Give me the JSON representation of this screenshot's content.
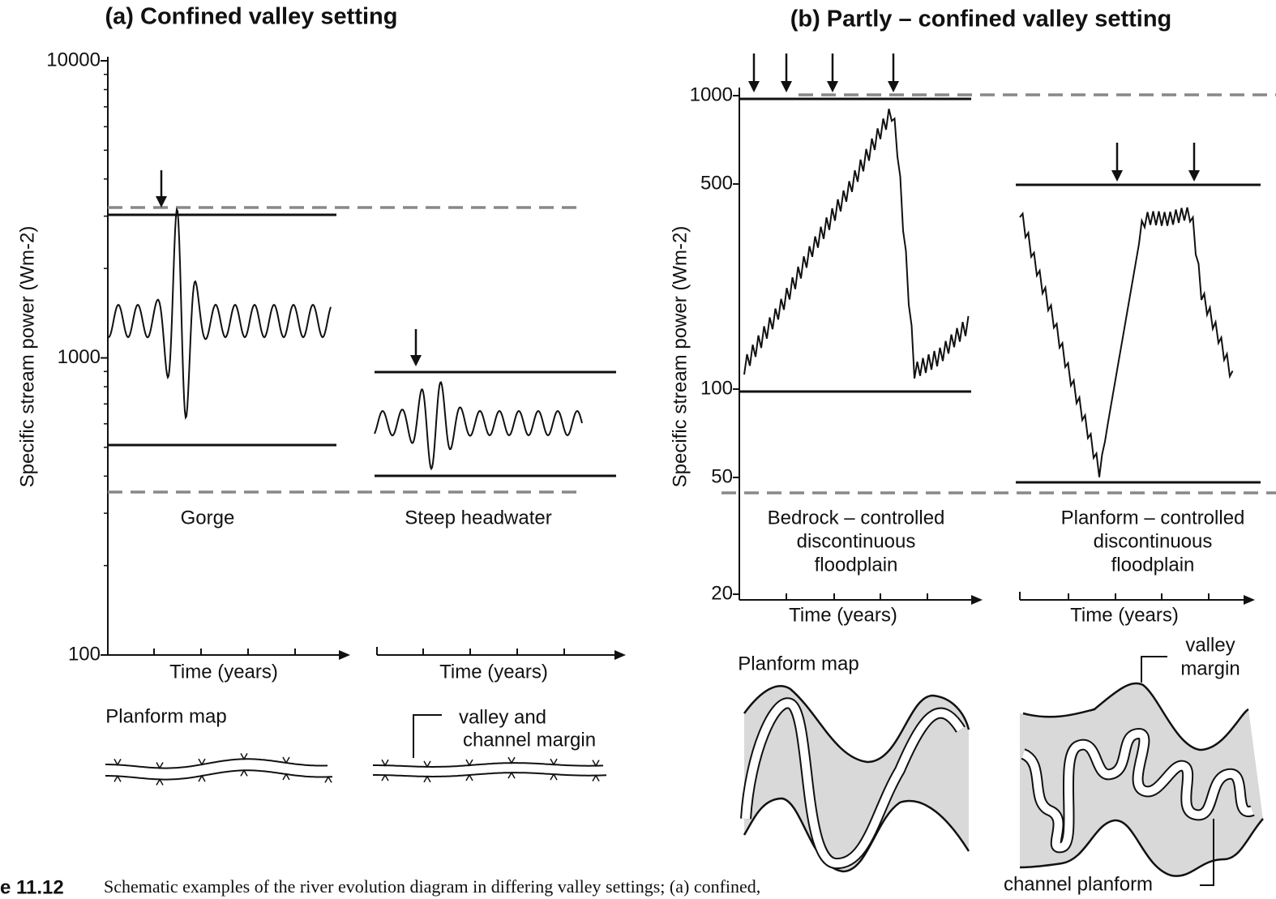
{
  "panel_a": {
    "title": "(a) Confined valley setting",
    "y_label": "Specific stream power (Wm-2)",
    "y_ticks": [
      "10000",
      "1000",
      "100"
    ],
    "plots": [
      {
        "label": "Gorge",
        "x_label": "Time (years)"
      },
      {
        "label": "Steep headwater",
        "x_label": "Time (years)"
      }
    ],
    "planform_map": "Planform map",
    "annotation": [
      "valley and",
      "channel margin"
    ]
  },
  "panel_b": {
    "title": "(b) Partly – confined valley setting",
    "y_label": "Specific stream power (Wm-2)",
    "y_ticks": [
      "1000",
      "500",
      "100",
      "50",
      "20"
    ],
    "plots": [
      {
        "label": [
          "Bedrock – controlled",
          "discontinuous",
          "floodplain"
        ],
        "x_label": "Time (years)"
      },
      {
        "label": [
          "Planform – controlled",
          "discontinuous",
          "floodplain"
        ],
        "x_label": "Time (years)"
      }
    ],
    "planform_map": "Planform map",
    "annotations": [
      [
        "valley",
        "margin"
      ],
      "channel planform"
    ]
  },
  "caption": {
    "label": "e 11.12",
    "text": "Schematic examples of the river evolution diagram in differing valley settings; (a) confined,"
  }
}
